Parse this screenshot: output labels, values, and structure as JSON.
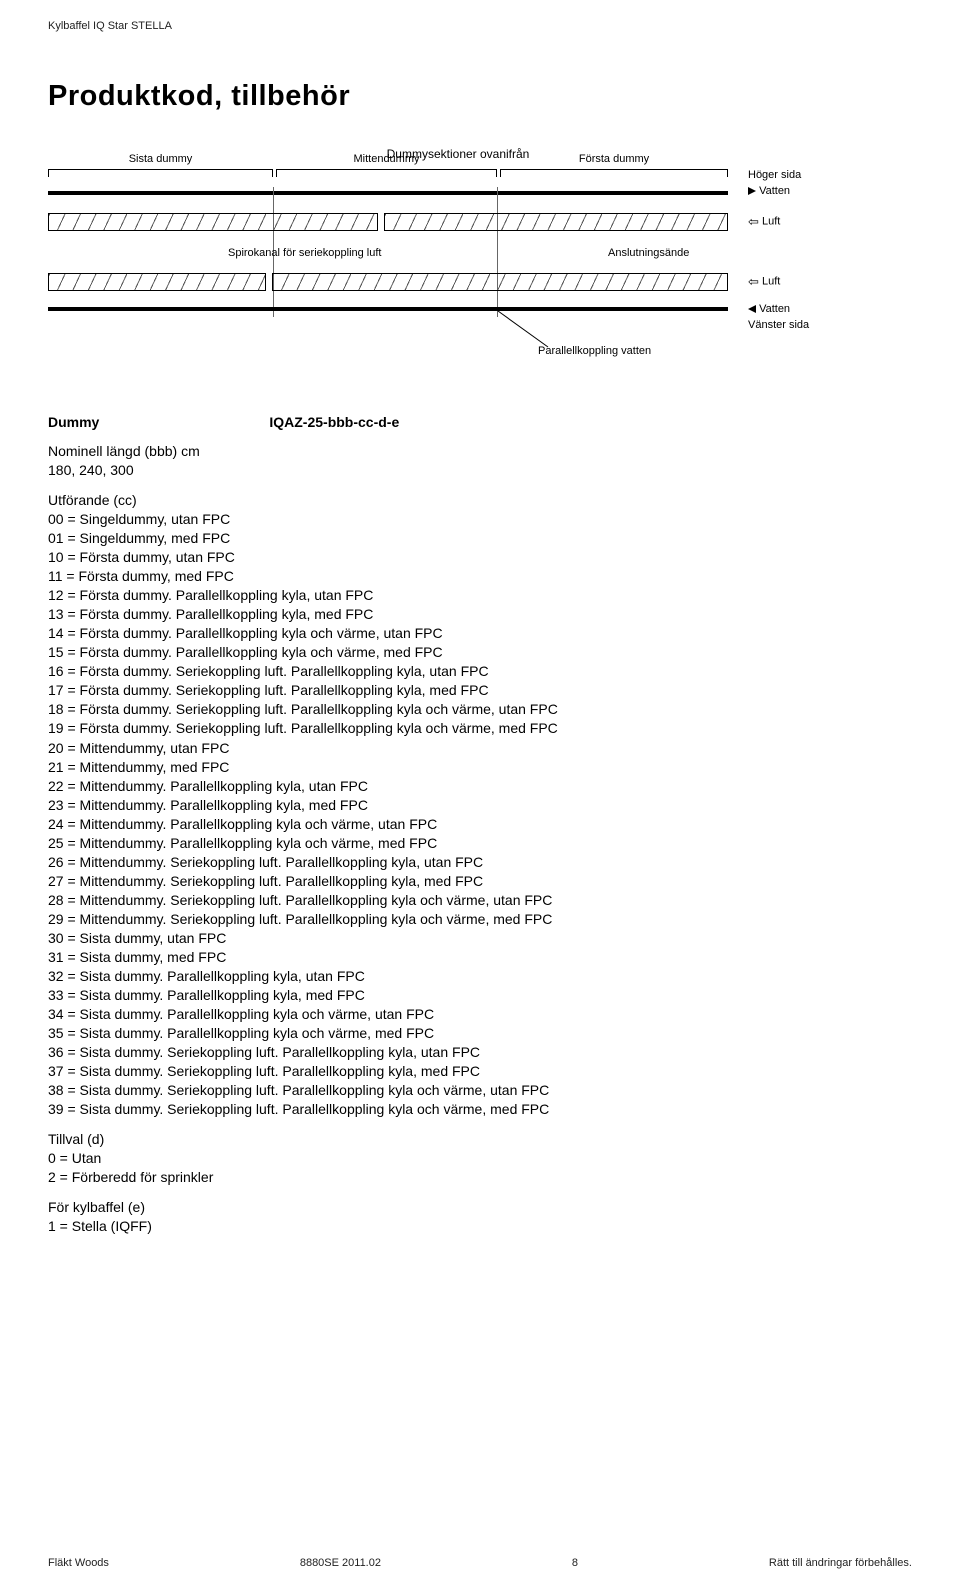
{
  "header": "Kylbaffel IQ Star STELLA",
  "title": "Produktkod, tillbehör",
  "diagram": {
    "top_title": "Dummysektioner ovanifrån",
    "sections": [
      "Sista dummy",
      "Mittendummy",
      "Första dummy"
    ],
    "right_top": "Höger sida",
    "vatten": "Vatten",
    "luft": "Luft",
    "spiro": "Spirokanal för seriekoppling luft",
    "anslut": "Anslutningsände",
    "parallel": "Parallellkoppling vatten",
    "vanster": "Vänster sida"
  },
  "dummy_label": "Dummy",
  "code": "IQAZ-25-bbb-cc-d-e",
  "nominell_title": "Nominell längd (bbb) cm",
  "nominell_vals": "180, 240, 300",
  "utforande_title": "Utförande (cc)",
  "utforande": [
    "00 = Singeldummy, utan FPC",
    "01 = Singeldummy, med FPC",
    "10 = Första dummy, utan FPC",
    "11 = Första dummy, med FPC",
    "12 = Första dummy. Parallellkoppling kyla, utan FPC",
    "13 = Första dummy. Parallellkoppling kyla, med FPC",
    "14 = Första dummy. Parallellkoppling kyla och värme, utan FPC",
    "15 = Första dummy. Parallellkoppling kyla och värme, med FPC",
    "16 = Första dummy. Seriekoppling luft. Parallellkoppling kyla, utan FPC",
    "17 = Första dummy. Seriekoppling luft. Parallellkoppling kyla, med FPC",
    "18 = Första dummy. Seriekoppling luft. Parallellkoppling kyla och värme, utan FPC",
    "19 = Första dummy. Seriekoppling luft. Parallellkoppling kyla och värme, med FPC",
    "20 = Mittendummy, utan FPC",
    "21 = Mittendummy, med FPC",
    "22 = Mittendummy. Parallellkoppling kyla, utan FPC",
    "23 = Mittendummy. Parallellkoppling kyla, med FPC",
    "24 = Mittendummy. Parallellkoppling kyla och värme, utan FPC",
    "25 = Mittendummy. Parallellkoppling kyla och värme, med FPC",
    "26 = Mittendummy. Seriekoppling luft. Parallellkoppling kyla, utan FPC",
    "27 = Mittendummy. Seriekoppling luft. Parallellkoppling kyla, med FPC",
    "28 = Mittendummy. Seriekoppling luft. Parallellkoppling kyla och värme, utan FPC",
    "29 = Mittendummy. Seriekoppling luft. Parallellkoppling kyla och värme, med FPC",
    "30 = Sista dummy, utan FPC",
    "31 = Sista dummy, med FPC",
    "32 = Sista dummy. Parallellkoppling kyla, utan FPC",
    "33 = Sista dummy. Parallellkoppling kyla, med FPC",
    "34 = Sista dummy. Parallellkoppling kyla och värme, utan FPC",
    "35 = Sista dummy. Parallellkoppling kyla och värme, med FPC",
    "36 = Sista dummy. Seriekoppling luft. Parallellkoppling kyla, utan FPC",
    "37 = Sista dummy. Seriekoppling luft. Parallellkoppling kyla, med FPC",
    "38 = Sista dummy. Seriekoppling luft. Parallellkoppling kyla och värme, utan FPC",
    "39 = Sista dummy. Seriekoppling luft. Parallellkoppling kyla och värme, med FPC"
  ],
  "tillval_title": "Tillval (d)",
  "tillval": [
    "0 = Utan",
    "2 = Förberedd för sprinkler"
  ],
  "for_kyl_title": "För kylbaffel (e)",
  "for_kyl": [
    "1 = Stella (IQFF)"
  ],
  "footer": {
    "left": "Fläkt Woods",
    "mid": "8880SE 2011.02",
    "page": "8",
    "right": "Rätt till ändringar förbehålles."
  }
}
